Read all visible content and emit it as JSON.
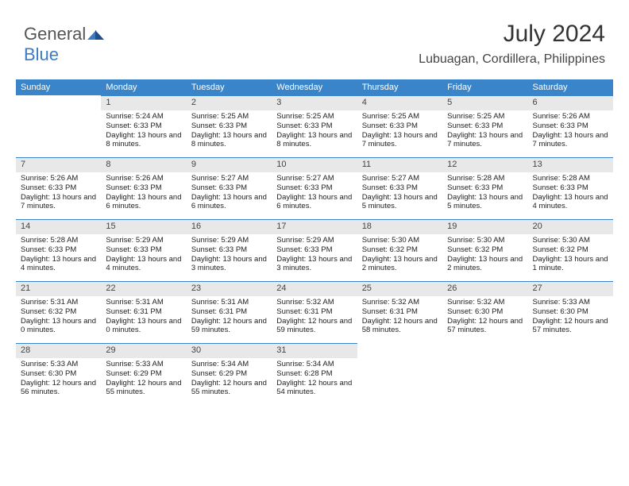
{
  "brand": {
    "part1": "General",
    "part2": "Blue"
  },
  "title": "July 2024",
  "location": "Lubuagan, Cordillera, Philippines",
  "colors": {
    "header_bg": "#3a85c9",
    "header_text": "#ffffff",
    "daynum_bg": "#e8e8e8",
    "daynum_border": "#3a85c9",
    "body_text": "#222222",
    "brand_gray": "#555555",
    "brand_blue": "#3a7cc4"
  },
  "daynames": [
    "Sunday",
    "Monday",
    "Tuesday",
    "Wednesday",
    "Thursday",
    "Friday",
    "Saturday"
  ],
  "weeks": [
    [
      {
        "n": "",
        "sr": "",
        "ss": "",
        "dl": ""
      },
      {
        "n": "1",
        "sr": "Sunrise: 5:24 AM",
        "ss": "Sunset: 6:33 PM",
        "dl": "Daylight: 13 hours and 8 minutes."
      },
      {
        "n": "2",
        "sr": "Sunrise: 5:25 AM",
        "ss": "Sunset: 6:33 PM",
        "dl": "Daylight: 13 hours and 8 minutes."
      },
      {
        "n": "3",
        "sr": "Sunrise: 5:25 AM",
        "ss": "Sunset: 6:33 PM",
        "dl": "Daylight: 13 hours and 8 minutes."
      },
      {
        "n": "4",
        "sr": "Sunrise: 5:25 AM",
        "ss": "Sunset: 6:33 PM",
        "dl": "Daylight: 13 hours and 7 minutes."
      },
      {
        "n": "5",
        "sr": "Sunrise: 5:25 AM",
        "ss": "Sunset: 6:33 PM",
        "dl": "Daylight: 13 hours and 7 minutes."
      },
      {
        "n": "6",
        "sr": "Sunrise: 5:26 AM",
        "ss": "Sunset: 6:33 PM",
        "dl": "Daylight: 13 hours and 7 minutes."
      }
    ],
    [
      {
        "n": "7",
        "sr": "Sunrise: 5:26 AM",
        "ss": "Sunset: 6:33 PM",
        "dl": "Daylight: 13 hours and 7 minutes."
      },
      {
        "n": "8",
        "sr": "Sunrise: 5:26 AM",
        "ss": "Sunset: 6:33 PM",
        "dl": "Daylight: 13 hours and 6 minutes."
      },
      {
        "n": "9",
        "sr": "Sunrise: 5:27 AM",
        "ss": "Sunset: 6:33 PM",
        "dl": "Daylight: 13 hours and 6 minutes."
      },
      {
        "n": "10",
        "sr": "Sunrise: 5:27 AM",
        "ss": "Sunset: 6:33 PM",
        "dl": "Daylight: 13 hours and 6 minutes."
      },
      {
        "n": "11",
        "sr": "Sunrise: 5:27 AM",
        "ss": "Sunset: 6:33 PM",
        "dl": "Daylight: 13 hours and 5 minutes."
      },
      {
        "n": "12",
        "sr": "Sunrise: 5:28 AM",
        "ss": "Sunset: 6:33 PM",
        "dl": "Daylight: 13 hours and 5 minutes."
      },
      {
        "n": "13",
        "sr": "Sunrise: 5:28 AM",
        "ss": "Sunset: 6:33 PM",
        "dl": "Daylight: 13 hours and 4 minutes."
      }
    ],
    [
      {
        "n": "14",
        "sr": "Sunrise: 5:28 AM",
        "ss": "Sunset: 6:33 PM",
        "dl": "Daylight: 13 hours and 4 minutes."
      },
      {
        "n": "15",
        "sr": "Sunrise: 5:29 AM",
        "ss": "Sunset: 6:33 PM",
        "dl": "Daylight: 13 hours and 4 minutes."
      },
      {
        "n": "16",
        "sr": "Sunrise: 5:29 AM",
        "ss": "Sunset: 6:33 PM",
        "dl": "Daylight: 13 hours and 3 minutes."
      },
      {
        "n": "17",
        "sr": "Sunrise: 5:29 AM",
        "ss": "Sunset: 6:33 PM",
        "dl": "Daylight: 13 hours and 3 minutes."
      },
      {
        "n": "18",
        "sr": "Sunrise: 5:30 AM",
        "ss": "Sunset: 6:32 PM",
        "dl": "Daylight: 13 hours and 2 minutes."
      },
      {
        "n": "19",
        "sr": "Sunrise: 5:30 AM",
        "ss": "Sunset: 6:32 PM",
        "dl": "Daylight: 13 hours and 2 minutes."
      },
      {
        "n": "20",
        "sr": "Sunrise: 5:30 AM",
        "ss": "Sunset: 6:32 PM",
        "dl": "Daylight: 13 hours and 1 minute."
      }
    ],
    [
      {
        "n": "21",
        "sr": "Sunrise: 5:31 AM",
        "ss": "Sunset: 6:32 PM",
        "dl": "Daylight: 13 hours and 0 minutes."
      },
      {
        "n": "22",
        "sr": "Sunrise: 5:31 AM",
        "ss": "Sunset: 6:31 PM",
        "dl": "Daylight: 13 hours and 0 minutes."
      },
      {
        "n": "23",
        "sr": "Sunrise: 5:31 AM",
        "ss": "Sunset: 6:31 PM",
        "dl": "Daylight: 12 hours and 59 minutes."
      },
      {
        "n": "24",
        "sr": "Sunrise: 5:32 AM",
        "ss": "Sunset: 6:31 PM",
        "dl": "Daylight: 12 hours and 59 minutes."
      },
      {
        "n": "25",
        "sr": "Sunrise: 5:32 AM",
        "ss": "Sunset: 6:31 PM",
        "dl": "Daylight: 12 hours and 58 minutes."
      },
      {
        "n": "26",
        "sr": "Sunrise: 5:32 AM",
        "ss": "Sunset: 6:30 PM",
        "dl": "Daylight: 12 hours and 57 minutes."
      },
      {
        "n": "27",
        "sr": "Sunrise: 5:33 AM",
        "ss": "Sunset: 6:30 PM",
        "dl": "Daylight: 12 hours and 57 minutes."
      }
    ],
    [
      {
        "n": "28",
        "sr": "Sunrise: 5:33 AM",
        "ss": "Sunset: 6:30 PM",
        "dl": "Daylight: 12 hours and 56 minutes."
      },
      {
        "n": "29",
        "sr": "Sunrise: 5:33 AM",
        "ss": "Sunset: 6:29 PM",
        "dl": "Daylight: 12 hours and 55 minutes."
      },
      {
        "n": "30",
        "sr": "Sunrise: 5:34 AM",
        "ss": "Sunset: 6:29 PM",
        "dl": "Daylight: 12 hours and 55 minutes."
      },
      {
        "n": "31",
        "sr": "Sunrise: 5:34 AM",
        "ss": "Sunset: 6:28 PM",
        "dl": "Daylight: 12 hours and 54 minutes."
      },
      {
        "n": "",
        "sr": "",
        "ss": "",
        "dl": ""
      },
      {
        "n": "",
        "sr": "",
        "ss": "",
        "dl": ""
      },
      {
        "n": "",
        "sr": "",
        "ss": "",
        "dl": ""
      }
    ]
  ]
}
